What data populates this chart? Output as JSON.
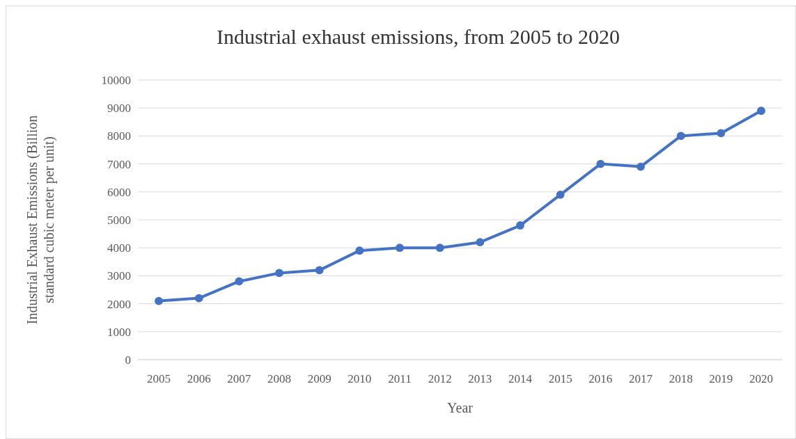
{
  "chart_data": {
    "type": "line",
    "title": "Industrial exhaust emissions, from 2005 to 2020",
    "xlabel": "Year",
    "ylabel": "Industrial Exhaust Emissions (Billion standard cubic meter per unit)",
    "categories": [
      "2005",
      "2006",
      "2007",
      "2008",
      "2009",
      "2010",
      "2011",
      "2012",
      "2013",
      "2014",
      "2015",
      "2016",
      "2017",
      "2018",
      "2019",
      "2020"
    ],
    "series": [
      {
        "color": "#4472c4",
        "values": [
          2100,
          2200,
          2800,
          3100,
          3200,
          3900,
          4000,
          4000,
          4200,
          4800,
          5900,
          7000,
          6900,
          8000,
          8100,
          8900
        ]
      }
    ],
    "ylim": [
      0,
      10000
    ],
    "yticks": [
      0,
      1000,
      2000,
      3000,
      4000,
      5000,
      6000,
      7000,
      8000,
      9000,
      10000
    ],
    "grid": "y",
    "marker": "circle",
    "line_style": "solid"
  }
}
